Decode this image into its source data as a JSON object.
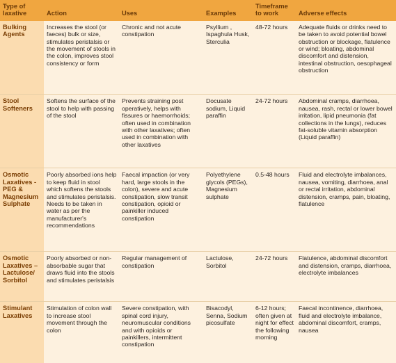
{
  "headers": {
    "type": "Type of laxative",
    "action": "Action",
    "uses": "Uses",
    "examples": "Examples",
    "timeframe": "Timeframe to work",
    "adverse": "Adverse effects"
  },
  "rows": [
    {
      "type": "Bulking Agents",
      "action": "Increases the stool (or faeces) bulk or size, stimulates peristalsis or the movement of stools in the colon, improves stool consistency or form",
      "uses": "Chronic and not acute constipation",
      "examples": "Psyllium , Ispaghula Husk, Sterculia",
      "timeframe": "48-72 hours",
      "adverse": "Adequate fluids or drinks need to be taken to avoid potential bowel obstruction or blockage, flatulence or wind; bloating, abdominal discomfort and distension, intestinal obstruction, oesophageal obstruction"
    },
    {
      "type": "Stool Softeners",
      "action": "Softens the surface of the stool to help with passing of the stool",
      "uses": "Prevents straining post operatively, helps with fissures or haemorrhoids; often used in combination with other laxatives; often used in combination with other laxatives",
      "examples": "Docusate sodium, Liquid paraffin",
      "timeframe": "24-72 hours",
      "adverse": "Abdominal cramps, diarrhoea, nausea, rash, rectal or lower bowel irritation, lipid pneumonia (fat collections in the lungs), reduces fat-soluble vitamin absorption (Liquid paraffin)"
    },
    {
      "type": "Osmotic Laxatives - PEG & Magnesium Sulphate",
      "action": "Poorly absorbed ions help to keep fluid in stool which softens the stools and stimulates peristalsis. Needs to be taken in water as per the manufacturer's recommendations",
      "uses": "Faecal impaction (or very hard, large stools in the colon), severe and acute constipation, slow transit constipation, opioid or painkiller induced constipation",
      "examples": "Polyethylene glycols (PEGs), Magnesium sulphate",
      "timeframe": "0.5-48 hours",
      "adverse": "Fluid and electrolyte imbalances, nausea, vomiting, diarrhoea, anal or rectal irritation, abdominal distension, cramps, pain, bloating, flatulence"
    },
    {
      "type": "Osmotic Laxatives – Lactulose/ Sorbitol",
      "action": "Poorly absorbed or non-absorbable sugar that draws fluid into the stools and stimulates peristalsis",
      "uses": "Regular management of constipation",
      "examples": "Lactulose, Sorbitol",
      "timeframe": "24-72 hours",
      "adverse": "Flatulence, abdominal discomfort and distension, cramps, diarrhoea, electrolyte imbalances"
    },
    {
      "type": "Stimulant Laxatives",
      "action": "Stimulation of colon wall to increase stool movement through the colon",
      "uses": "Severe constipation, with spinal cord injury, neuromuscular conditions and with opioids or painkillers, intermittent constipation",
      "examples": "Bisacodyl, Senna, Sodium picosulfate",
      "timeframe": "6-12 hours; often given at night for effect the following morning",
      "adverse": "Faecal incontinence, diarrhoea, fluid and electrolyte imbalance, abdominal discomfort, cramps, nausea"
    }
  ]
}
